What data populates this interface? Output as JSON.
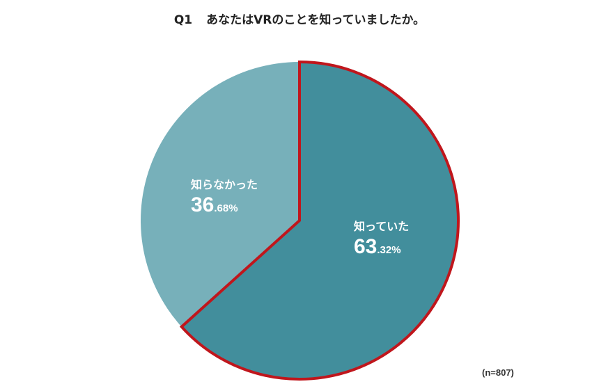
{
  "title": {
    "number": "Q1",
    "text": "あなたはVRのことを知っていましたか。"
  },
  "sample_note": "(n=807)",
  "colors": {
    "knew": "#428e9c",
    "didnt": "#77b0ba",
    "highlight_border": "#c0161c"
  },
  "chart_data": {
    "type": "pie",
    "title": "Q1　あなたはVRのことを知っていましたか。",
    "slices": [
      {
        "name": "知っていた",
        "value": 63.32,
        "int_part": "63",
        "dec_part": ".32%",
        "color": "#428e9c",
        "highlighted": true
      },
      {
        "name": "知らなかった",
        "value": 36.68,
        "int_part": "36",
        "dec_part": ".68%",
        "color": "#77b0ba",
        "highlighted": false
      }
    ],
    "start": "12 o'clock",
    "direction": "clockwise",
    "n": 807
  }
}
